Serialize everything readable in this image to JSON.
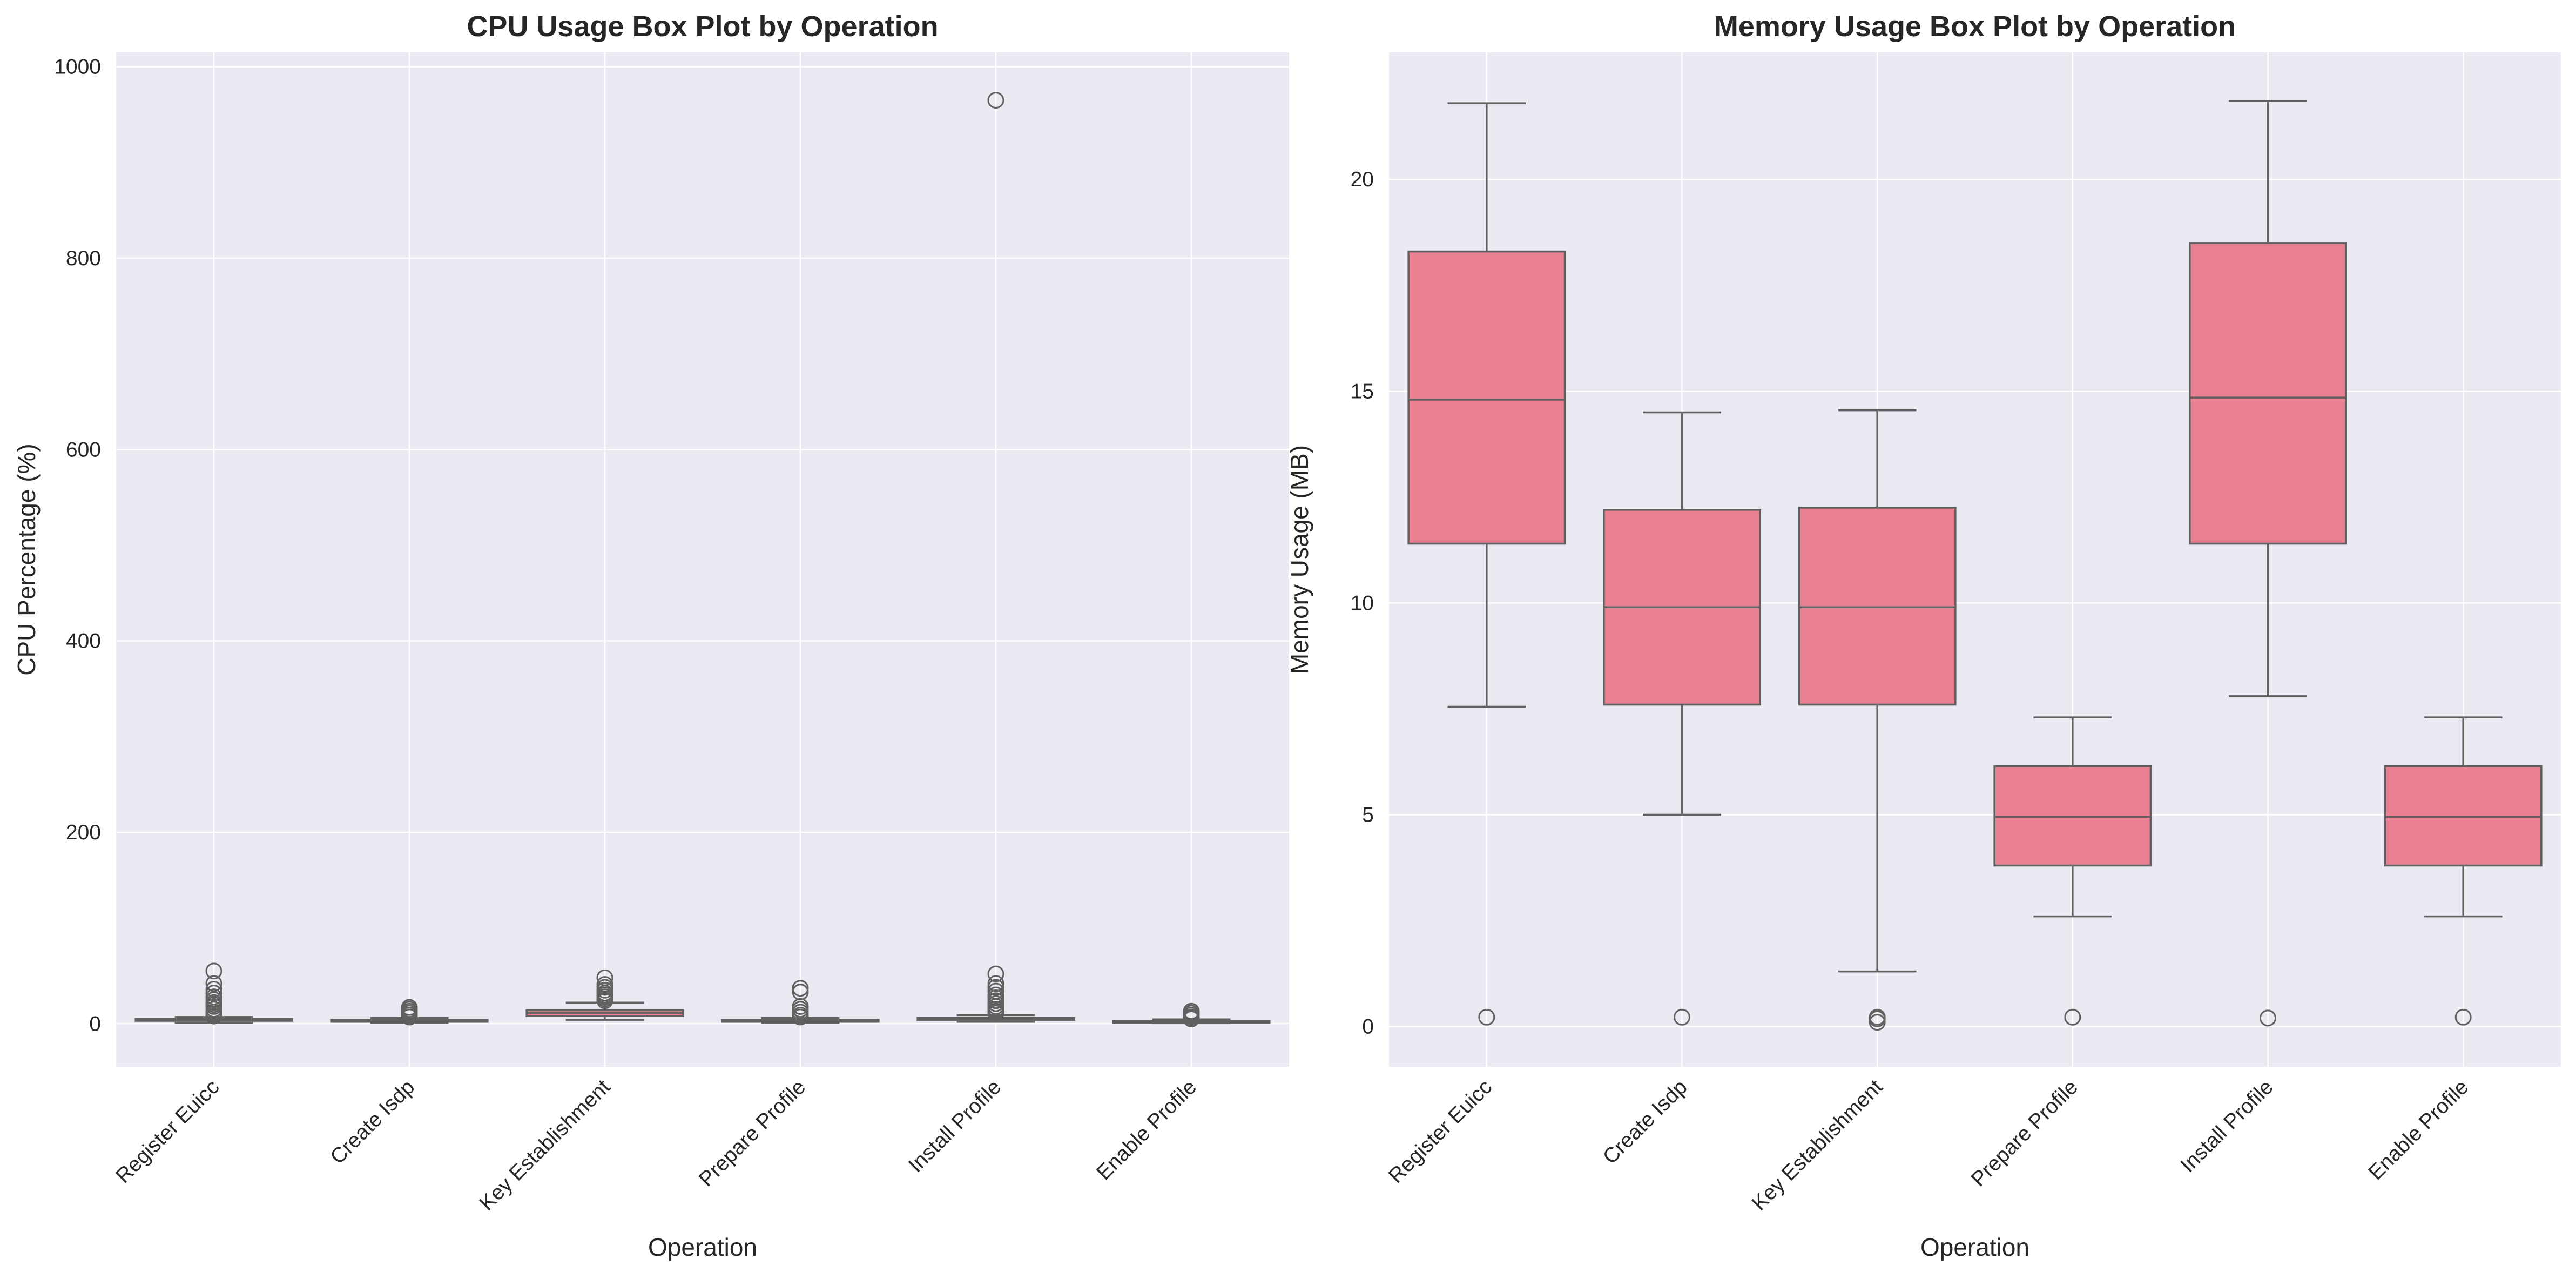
{
  "figure_bg": "#ffffff",
  "colors": {
    "axes_bg": "#eaeaf2",
    "box_fill": "#e88092",
    "box_edge": "#606060",
    "text": "#262626",
    "grid": "#ffffff"
  },
  "chart_data": [
    {
      "type": "box",
      "title": "CPU Usage Box Plot by Operation",
      "xlabel": "Operation",
      "ylabel": "CPU Percentage (%)",
      "ylim": [
        -45,
        1015
      ],
      "yticks": [
        0,
        200,
        400,
        600,
        800,
        1000
      ],
      "grid": true,
      "categories": [
        "Register Euicc",
        "Create Isdp",
        "Key Establishment",
        "Prepare Profile",
        "Install Profile",
        "Enable Profile"
      ],
      "boxes": [
        {
          "whisker_low": 1,
          "q1": 3,
          "median": 4,
          "q3": 5,
          "whisker_high": 7,
          "outliers": [
            8,
            10,
            12,
            15,
            18,
            20,
            22,
            25,
            28,
            32,
            36,
            42,
            55
          ]
        },
        {
          "whisker_low": 1,
          "q1": 2,
          "median": 3,
          "q3": 4,
          "whisker_high": 6,
          "outliers": [
            7,
            9,
            11,
            13,
            15,
            17
          ]
        },
        {
          "whisker_low": 4,
          "q1": 8,
          "median": 11,
          "q3": 14,
          "whisker_high": 22,
          "outliers": [
            24,
            26,
            28,
            30,
            32,
            35,
            38,
            41,
            48
          ]
        },
        {
          "whisker_low": 1,
          "q1": 2,
          "median": 3,
          "q3": 4,
          "whisker_high": 6,
          "outliers": [
            7,
            9,
            12,
            15,
            18,
            33,
            37
          ]
        },
        {
          "whisker_low": 2,
          "q1": 4,
          "median": 5,
          "q3": 6,
          "whisker_high": 9,
          "outliers": [
            11,
            13,
            15,
            18,
            21,
            24,
            27,
            30,
            34,
            38,
            42,
            52,
            965
          ]
        },
        {
          "whisker_low": 0.5,
          "q1": 1,
          "median": 2,
          "q3": 3,
          "whisker_high": 4.5,
          "outliers": [
            5,
            6,
            7,
            9,
            11,
            13
          ]
        }
      ]
    },
    {
      "type": "box",
      "title": "Memory Usage Box Plot by Operation",
      "xlabel": "Operation",
      "ylabel": "Memory Usage (MB)",
      "ylim": [
        -0.95,
        23
      ],
      "yticks": [
        0,
        5,
        10,
        15,
        20
      ],
      "grid": true,
      "categories": [
        "Register Euicc",
        "Create Isdp",
        "Key Establishment",
        "Prepare Profile",
        "Install Profile",
        "Enable Profile"
      ],
      "boxes": [
        {
          "whisker_low": 7.55,
          "q1": 11.4,
          "median": 14.8,
          "q3": 18.3,
          "whisker_high": 21.8,
          "outliers": [
            0.22
          ]
        },
        {
          "whisker_low": 5.0,
          "q1": 7.6,
          "median": 9.9,
          "q3": 12.2,
          "whisker_high": 14.5,
          "outliers": [
            0.22
          ]
        },
        {
          "whisker_low": 1.3,
          "q1": 7.6,
          "median": 9.9,
          "q3": 12.25,
          "whisker_high": 14.55,
          "outliers": [
            0.1,
            0.18,
            0.22
          ]
        },
        {
          "whisker_low": 2.6,
          "q1": 3.8,
          "median": 4.95,
          "q3": 6.15,
          "whisker_high": 7.3,
          "outliers": [
            0.22
          ]
        },
        {
          "whisker_low": 7.8,
          "q1": 11.4,
          "median": 14.85,
          "q3": 18.5,
          "whisker_high": 21.85,
          "outliers": [
            0.2
          ]
        },
        {
          "whisker_low": 2.6,
          "q1": 3.8,
          "median": 4.95,
          "q3": 6.15,
          "whisker_high": 7.3,
          "outliers": [
            0.22
          ]
        }
      ]
    }
  ]
}
